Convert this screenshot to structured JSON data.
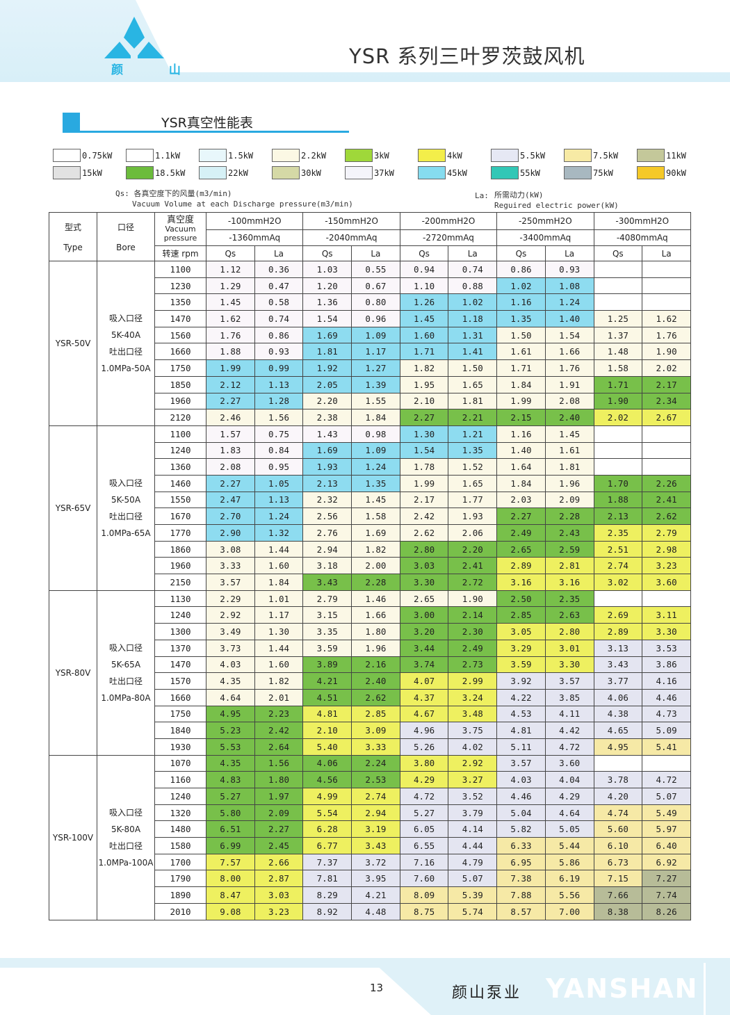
{
  "header": {
    "title": "YSR 系列三叶罗茨鼓风机",
    "logo_text": "颜 山"
  },
  "section": {
    "title": "YSR真空性能表"
  },
  "legend": [
    {
      "label": "0.75kW",
      "color": "#ffffff"
    },
    {
      "label": "1.1kW",
      "color": "#ffffff"
    },
    {
      "label": "1.5kW",
      "color": "#e8f7fb"
    },
    {
      "label": "2.2kW",
      "color": "#fbf8e4"
    },
    {
      "label": "3kW",
      "color": "#9fd83a"
    },
    {
      "label": "4kW",
      "color": "#f3ee4a"
    },
    {
      "label": "5.5kW",
      "color": "#e6e8f4"
    },
    {
      "label": "7.5kW",
      "color": "#f7eaa5"
    },
    {
      "label": "11kW",
      "color": "#c4c89a"
    },
    {
      "label": "15kW",
      "color": "#e2e2e2"
    },
    {
      "label": "18.5kW",
      "color": "#6cbc3c"
    },
    {
      "label": "22kW",
      "color": "#d6f1f6"
    },
    {
      "label": "30kW",
      "color": "#d5d9a6"
    },
    {
      "label": "37kW",
      "color": "#f4f4fa"
    },
    {
      "label": "45kW",
      "color": "#86dcef"
    },
    {
      "label": "55kW",
      "color": "#32c7b6"
    },
    {
      "label": "75kW",
      "color": "#a8b8c0"
    },
    {
      "label": "90kW",
      "color": "#f5c928"
    }
  ],
  "notes": {
    "qs_prefix": "Qs:",
    "qs_cn": "各真空度下的风量(m3/min)",
    "qs_en": "Vacuum Volume at each Discharge pressure(m3/min)",
    "la_prefix": "La:",
    "la_cn": "所需动力(kW)",
    "la_en": "Reguired electric power(kW)"
  },
  "table": {
    "type_cn": "型式",
    "type_en": "Type",
    "bore_cn": "口径",
    "bore_en": "Bore",
    "vac_cn": "真空度",
    "vac_en": "Vacuum pressure",
    "rpm": "转速 rpm",
    "pressures": [
      {
        "h2o": "-100mmH2O",
        "aq": "-1360mmAq"
      },
      {
        "h2o": "-150mmH2O",
        "aq": "-2040mmAq"
      },
      {
        "h2o": "-200mmH2O",
        "aq": "-2720mmAq"
      },
      {
        "h2o": "-250mmH2O",
        "aq": "-3400mmAq"
      },
      {
        "h2o": "-300mmH2O",
        "aq": "-4080mmAq"
      }
    ],
    "qs": "Qs",
    "la": "La",
    "cell_colors": {
      "w": "#faf6fa",
      "y": "#fbf8e6",
      "c": "#8edcf0",
      "g": "#78c04a",
      "Y": "#eef060",
      "l": "#e4e5f1",
      "p": "#f6e9a6",
      "o": "#b7bc98",
      "-": "#ffffff"
    },
    "groups": [
      {
        "type": "YSR-50V",
        "bore": [
          "吸入口径",
          "5K-40A",
          "吐出口径",
          "1.0MPa-50A"
        ],
        "rows": [
          {
            "rpm": "1100",
            "v": [
              "1.12",
              "0.36",
              "1.03",
              "0.55",
              "0.94",
              "0.74",
              "0.86",
              "0.93",
              "",
              ""
            ],
            "c": "wwwwwwww--"
          },
          {
            "rpm": "1230",
            "v": [
              "1.29",
              "0.47",
              "1.20",
              "0.67",
              "1.10",
              "0.88",
              "1.02",
              "1.08",
              "",
              ""
            ],
            "c": "wwwwwwcc--"
          },
          {
            "rpm": "1350",
            "v": [
              "1.45",
              "0.58",
              "1.36",
              "0.80",
              "1.26",
              "1.02",
              "1.16",
              "1.24",
              "",
              ""
            ],
            "c": "wwwwcccc--"
          },
          {
            "rpm": "1470",
            "v": [
              "1.62",
              "0.74",
              "1.54",
              "0.96",
              "1.45",
              "1.18",
              "1.35",
              "1.40",
              "1.25",
              "1.62"
            ],
            "c": "wwwwccccyy"
          },
          {
            "rpm": "1560",
            "v": [
              "1.76",
              "0.86",
              "1.69",
              "1.09",
              "1.60",
              "1.31",
              "1.50",
              "1.54",
              "1.37",
              "1.76"
            ],
            "c": "wwccccyyyy"
          },
          {
            "rpm": "1660",
            "v": [
              "1.88",
              "0.93",
              "1.81",
              "1.17",
              "1.71",
              "1.41",
              "1.61",
              "1.66",
              "1.48",
              "1.90"
            ],
            "c": "wwccccyyyy"
          },
          {
            "rpm": "1750",
            "v": [
              "1.99",
              "0.99",
              "1.92",
              "1.27",
              "1.82",
              "1.50",
              "1.71",
              "1.76",
              "1.58",
              "2.02"
            ],
            "c": "ccccyyyyyy"
          },
          {
            "rpm": "1850",
            "v": [
              "2.12",
              "1.13",
              "2.05",
              "1.39",
              "1.95",
              "1.65",
              "1.84",
              "1.91",
              "1.71",
              "2.17"
            ],
            "c": "ccccyyyygg"
          },
          {
            "rpm": "1960",
            "v": [
              "2.27",
              "1.28",
              "2.20",
              "1.55",
              "2.10",
              "1.81",
              "1.99",
              "2.08",
              "1.90",
              "2.34"
            ],
            "c": "ccyyyyyygg"
          },
          {
            "rpm": "2120",
            "v": [
              "2.46",
              "1.56",
              "2.38",
              "1.84",
              "2.27",
              "2.21",
              "2.15",
              "2.40",
              "2.02",
              "2.67"
            ],
            "c": "yyyyggggYY"
          }
        ]
      },
      {
        "type": "YSR-65V",
        "bore": [
          "吸入口径",
          "5K-50A",
          "吐出口径",
          "1.0MPa-65A"
        ],
        "rows": [
          {
            "rpm": "1100",
            "v": [
              "1.57",
              "0.75",
              "1.43",
              "0.98",
              "1.30",
              "1.21",
              "1.16",
              "1.45",
              "",
              ""
            ],
            "c": "wwwwccyy--"
          },
          {
            "rpm": "1240",
            "v": [
              "1.83",
              "0.84",
              "1.69",
              "1.09",
              "1.54",
              "1.35",
              "1.40",
              "1.61",
              "",
              ""
            ],
            "c": "wwccccyy--"
          },
          {
            "rpm": "1360",
            "v": [
              "2.08",
              "0.95",
              "1.93",
              "1.24",
              "1.78",
              "1.52",
              "1.64",
              "1.81",
              "",
              ""
            ],
            "c": "wwccyyyy--"
          },
          {
            "rpm": "1460",
            "v": [
              "2.27",
              "1.05",
              "2.13",
              "1.35",
              "1.99",
              "1.65",
              "1.84",
              "1.96",
              "1.70",
              "2.26"
            ],
            "c": "ccccyyyygg"
          },
          {
            "rpm": "1550",
            "v": [
              "2.47",
              "1.13",
              "2.32",
              "1.45",
              "2.17",
              "1.77",
              "2.03",
              "2.09",
              "1.88",
              "2.41"
            ],
            "c": "ccyyyyyygg"
          },
          {
            "rpm": "1670",
            "v": [
              "2.70",
              "1.24",
              "2.56",
              "1.58",
              "2.42",
              "1.93",
              "2.27",
              "2.28",
              "2.13",
              "2.62"
            ],
            "c": "ccyyyygggg"
          },
          {
            "rpm": "1770",
            "v": [
              "2.90",
              "1.32",
              "2.76",
              "1.69",
              "2.62",
              "2.06",
              "2.49",
              "2.43",
              "2.35",
              "2.79"
            ],
            "c": "ccyyyyggYY"
          },
          {
            "rpm": "1860",
            "v": [
              "3.08",
              "1.44",
              "2.94",
              "1.82",
              "2.80",
              "2.20",
              "2.65",
              "2.59",
              "2.51",
              "2.98"
            ],
            "c": "yyyyggggYY"
          },
          {
            "rpm": "1960",
            "v": [
              "3.33",
              "1.60",
              "3.18",
              "2.00",
              "3.03",
              "2.41",
              "2.89",
              "2.81",
              "2.74",
              "3.23"
            ],
            "c": "yyyyggYYYY"
          },
          {
            "rpm": "2150",
            "v": [
              "3.57",
              "1.84",
              "3.43",
              "2.28",
              "3.30",
              "2.72",
              "3.16",
              "3.16",
              "3.02",
              "3.60"
            ],
            "c": "yyggggYYYY"
          }
        ]
      },
      {
        "type": "YSR-80V",
        "bore": [
          "吸入口径",
          "5K-65A",
          "吐出口径",
          "1.0MPa-80A"
        ],
        "rows": [
          {
            "rpm": "1130",
            "v": [
              "2.29",
              "1.01",
              "2.79",
              "1.46",
              "2.65",
              "1.90",
              "2.50",
              "2.35",
              "",
              ""
            ],
            "c": "yyyyyygg--"
          },
          {
            "rpm": "1240",
            "v": [
              "2.92",
              "1.17",
              "3.15",
              "1.66",
              "3.00",
              "2.14",
              "2.85",
              "2.63",
              "2.69",
              "3.11"
            ],
            "c": "yyyyggggYY"
          },
          {
            "rpm": "1300",
            "v": [
              "3.49",
              "1.30",
              "3.35",
              "1.80",
              "3.20",
              "2.30",
              "3.05",
              "2.80",
              "2.89",
              "3.30"
            ],
            "c": "yyyyggYYYY"
          },
          {
            "rpm": "1370",
            "v": [
              "3.73",
              "1.44",
              "3.59",
              "1.96",
              "3.44",
              "2.49",
              "3.29",
              "3.01",
              "3.13",
              "3.53"
            ],
            "c": "yyyyggYYll"
          },
          {
            "rpm": "1470",
            "v": [
              "4.03",
              "1.60",
              "3.89",
              "2.16",
              "3.74",
              "2.73",
              "3.59",
              "3.30",
              "3.43",
              "3.86"
            ],
            "c": "yyggggYYll"
          },
          {
            "rpm": "1570",
            "v": [
              "4.35",
              "1.82",
              "4.21",
              "2.40",
              "4.07",
              "2.99",
              "3.92",
              "3.57",
              "3.77",
              "4.16"
            ],
            "c": "yyggYYllll"
          },
          {
            "rpm": "1660",
            "v": [
              "4.64",
              "2.01",
              "4.51",
              "2.62",
              "4.37",
              "3.24",
              "4.22",
              "3.85",
              "4.06",
              "4.46"
            ],
            "c": "yyggYYllll"
          },
          {
            "rpm": "1750",
            "v": [
              "4.95",
              "2.23",
              "4.81",
              "2.85",
              "4.67",
              "3.48",
              "4.53",
              "4.11",
              "4.38",
              "4.73"
            ],
            "c": "ggYYYYllll"
          },
          {
            "rpm": "1840",
            "v": [
              "5.23",
              "2.42",
              "2.10",
              "3.09",
              "4.96",
              "3.75",
              "4.81",
              "4.42",
              "4.65",
              "5.09"
            ],
            "c": "ggYYllllll"
          },
          {
            "rpm": "1930",
            "v": [
              "5.53",
              "2.64",
              "5.40",
              "3.33",
              "5.26",
              "4.02",
              "5.11",
              "4.72",
              "4.95",
              "5.41"
            ],
            "c": "ggYYllllpp"
          }
        ]
      },
      {
        "type": "YSR-100V",
        "bore": [
          "吸入口径",
          "5K-80A",
          "吐出口径",
          "1.0MPa-100A"
        ],
        "rows": [
          {
            "rpm": "1070",
            "v": [
              "4.35",
              "1.56",
              "4.06",
              "2.24",
              "3.80",
              "2.92",
              "3.57",
              "3.60",
              "",
              ""
            ],
            "c": "ggggYYll--"
          },
          {
            "rpm": "1160",
            "v": [
              "4.83",
              "1.80",
              "4.56",
              "2.53",
              "4.29",
              "3.27",
              "4.03",
              "4.04",
              "3.78",
              "4.72"
            ],
            "c": "ggggYYllll"
          },
          {
            "rpm": "1240",
            "v": [
              "5.27",
              "1.97",
              "4.99",
              "2.74",
              "4.72",
              "3.52",
              "4.46",
              "4.29",
              "4.20",
              "5.07"
            ],
            "c": "ggYYllllll"
          },
          {
            "rpm": "1320",
            "v": [
              "5.80",
              "2.09",
              "5.54",
              "2.94",
              "5.27",
              "3.79",
              "5.04",
              "4.64",
              "4.74",
              "5.49"
            ],
            "c": "ggYYllllpp"
          },
          {
            "rpm": "1480",
            "v": [
              "6.51",
              "2.27",
              "6.28",
              "3.19",
              "6.05",
              "4.14",
              "5.82",
              "5.05",
              "5.60",
              "5.97"
            ],
            "c": "ggYYllllpp"
          },
          {
            "rpm": "1580",
            "v": [
              "6.99",
              "2.45",
              "6.77",
              "3.43",
              "6.55",
              "4.44",
              "6.33",
              "5.44",
              "6.10",
              "6.40"
            ],
            "c": "ggYYllpppp"
          },
          {
            "rpm": "1700",
            "v": [
              "7.57",
              "2.66",
              "7.37",
              "3.72",
              "7.16",
              "4.79",
              "6.95",
              "5.86",
              "6.73",
              "6.92"
            ],
            "c": "YYllllpppp"
          },
          {
            "rpm": "1790",
            "v": [
              "8.00",
              "2.87",
              "7.81",
              "3.95",
              "7.60",
              "5.07",
              "7.38",
              "6.19",
              "7.15",
              "7.27"
            ],
            "c": "YYllllpppo"
          },
          {
            "rpm": "1890",
            "v": [
              "8.47",
              "3.03",
              "8.29",
              "4.21",
              "8.09",
              "5.39",
              "7.88",
              "5.56",
              "7.66",
              "7.74"
            ],
            "c": "YYllppppoo"
          },
          {
            "rpm": "2010",
            "v": [
              "9.08",
              "3.23",
              "8.92",
              "4.48",
              "8.75",
              "5.74",
              "8.57",
              "7.00",
              "8.38",
              "8.26"
            ],
            "c": "YYllppppoo"
          }
        ]
      }
    ]
  },
  "footer": {
    "page": "13",
    "brand_cn": "颜山泵业",
    "brand_en": "YANSHAN"
  }
}
